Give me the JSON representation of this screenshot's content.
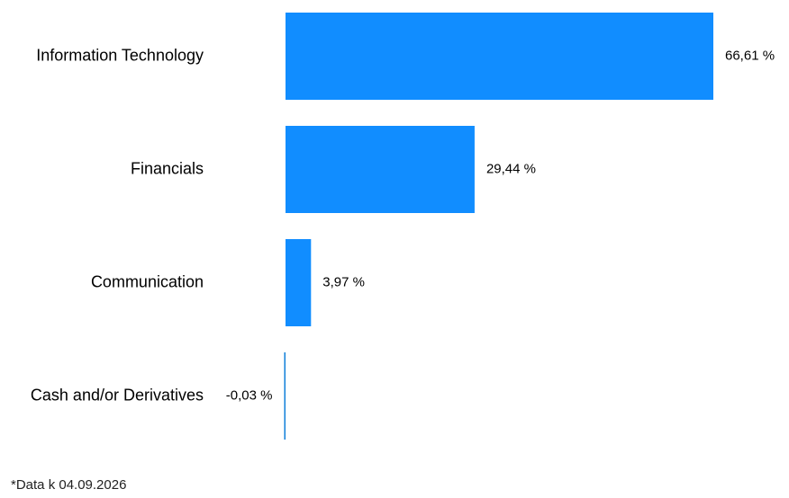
{
  "colors": {
    "positive_bar": "#118DFF",
    "negative_bar": "#0F7FD9",
    "text": "#000000",
    "footnote": "#222222"
  },
  "chart_data": {
    "type": "bar",
    "orientation": "horizontal",
    "categories": [
      "Information Technology",
      "Financials",
      "Communication",
      "Cash and/or Derivatives"
    ],
    "values": [
      66.61,
      29.44,
      3.97,
      -0.03
    ],
    "value_labels": [
      "66,61 %",
      "29,44 %",
      "3,97 %",
      "-0,03 %"
    ],
    "unit": "%",
    "xlim": [
      0,
      66.61
    ],
    "grid": false,
    "legend": "none"
  },
  "footnote": "*Data k 04.09.2026"
}
